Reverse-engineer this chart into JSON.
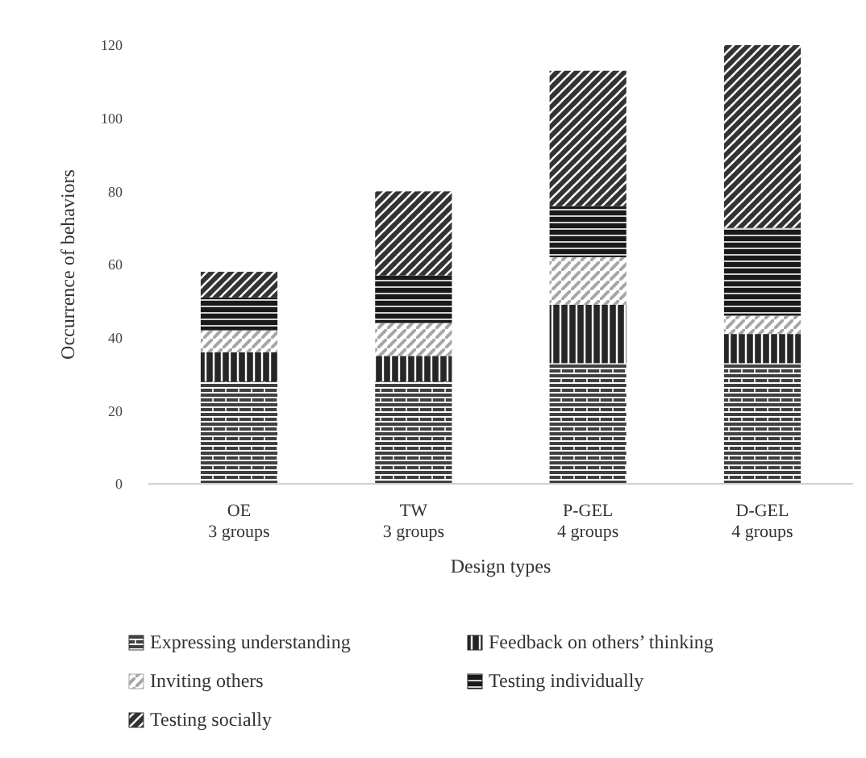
{
  "chart_data": {
    "type": "bar",
    "stacked": true,
    "xlabel": "Design types",
    "ylabel": "Occurrence of behaviors",
    "categories": [
      "OE\n3 groups",
      "TW\n3 groups",
      "P-GEL\n4 groups",
      "D-GEL\n4 groups"
    ],
    "ylim": [
      0,
      120
    ],
    "yticks": [
      0,
      20,
      40,
      60,
      80,
      100,
      120
    ],
    "grid": false,
    "legend": "bottom",
    "series": [
      {
        "name": "Expressing understanding",
        "color": "#404040",
        "values": [
          28,
          28,
          33,
          33
        ]
      },
      {
        "name": "Feedback on others’ thinking",
        "color": "#262626",
        "values": [
          8,
          7,
          16,
          8
        ]
      },
      {
        "name": "Inviting others",
        "color": "#a6a6a6",
        "values": [
          6,
          9,
          13,
          5
        ]
      },
      {
        "name": "Testing individually",
        "color": "#1a1a1a",
        "values": [
          9,
          13,
          14,
          24
        ]
      },
      {
        "name": "Testing socially",
        "color": "#333333",
        "values": [
          7,
          23,
          37,
          50
        ]
      }
    ]
  }
}
